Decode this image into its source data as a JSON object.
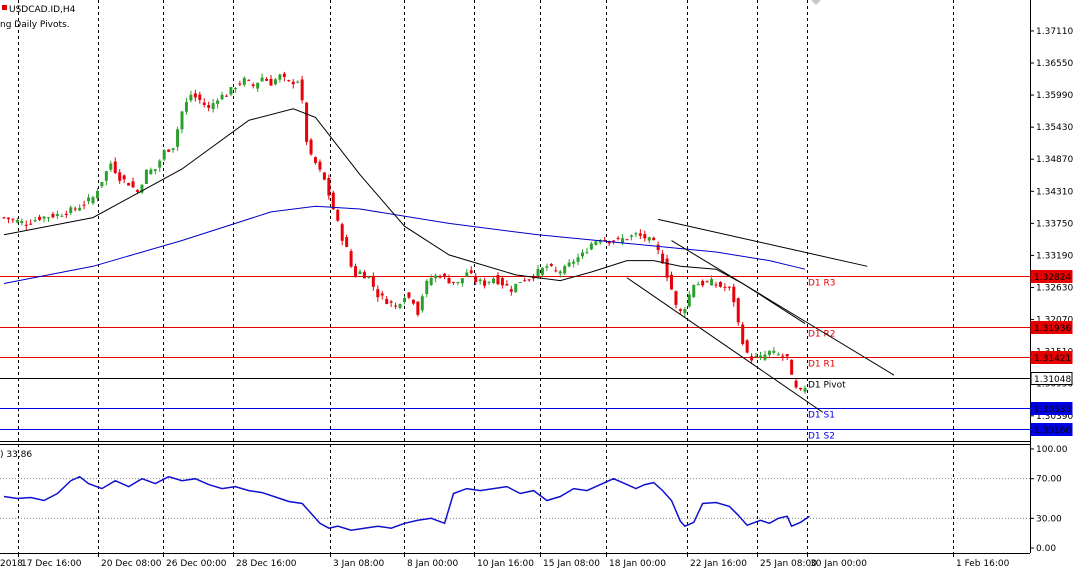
{
  "header": {
    "symbol_title": "USDCAD.ID,H4",
    "indicator_label": "ng Daily Pivots."
  },
  "rsi_label": ") 33.86",
  "colors": {
    "bull": "#2ca02c",
    "bear": "#e8000a",
    "ma_fast": "#000000",
    "ma_slow": "#0000c8",
    "resistance": "#e60000",
    "support": "#0000e6",
    "pivot": "#000000",
    "rsi": "#1010d0",
    "grid": "#000000"
  },
  "chart_data": [
    {
      "type": "candlestick",
      "title": "USDCAD.ID,H4",
      "ylim": [
        1.2995,
        1.3765
      ],
      "y_ticks": [
        "1.37110",
        "1.36550",
        "1.35990",
        "1.35430",
        "1.34870",
        "1.34310",
        "1.33750",
        "1.33190",
        "1.32630",
        "1.32070",
        "1.31510",
        "1.30950",
        "1.30390"
      ],
      "x_tick_labels": [
        "2018",
        "17 Dec 16:00",
        "20 Dec 08:00",
        "26 Dec 00:00",
        "28 Dec 16:00",
        "3 Jan 08:00",
        "8 Jan 00:00",
        "10 Jan 16:00",
        "15 Jan 08:00",
        "18 Jan 00:00",
        "22 Jan 16:00",
        "25 Jan 08:00",
        "30 Jan 00:00",
        "1 Feb 16:00"
      ],
      "close_path": [
        [
          0,
          1.3385
        ],
        [
          5,
          1.3375
        ],
        [
          8,
          1.3385
        ],
        [
          12,
          1.339
        ],
        [
          16,
          1.34
        ],
        [
          20,
          1.342
        ],
        [
          24,
          1.348
        ],
        [
          26,
          1.3455
        ],
        [
          28,
          1.3445
        ],
        [
          30,
          1.343
        ],
        [
          32,
          1.3465
        ],
        [
          34,
          1.347
        ],
        [
          36,
          1.35
        ],
        [
          38,
          1.351
        ],
        [
          40,
          1.357
        ],
        [
          42,
          1.36
        ],
        [
          44,
          1.359
        ],
        [
          46,
          1.3575
        ],
        [
          48,
          1.3595
        ],
        [
          50,
          1.36
        ],
        [
          52,
          1.3615
        ],
        [
          54,
          1.3625
        ],
        [
          56,
          1.3615
        ],
        [
          58,
          1.363
        ],
        [
          60,
          1.362
        ],
        [
          62,
          1.3632
        ],
        [
          64,
          1.362
        ],
        [
          66,
          1.3625
        ],
        [
          67,
          1.3585
        ],
        [
          68,
          1.352
        ],
        [
          69,
          1.349
        ],
        [
          70,
          1.348
        ],
        [
          72,
          1.345
        ],
        [
          74,
          1.34
        ],
        [
          76,
          1.335
        ],
        [
          77,
          1.333
        ],
        [
          78,
          1.33
        ],
        [
          79,
          1.3285
        ],
        [
          80,
          1.329
        ],
        [
          82,
          1.328
        ],
        [
          84,
          1.325
        ],
        [
          86,
          1.324
        ],
        [
          88,
          1.323
        ],
        [
          90,
          1.325
        ],
        [
          92,
          1.324
        ],
        [
          93,
          1.322
        ],
        [
          94,
          1.325
        ],
        [
          95,
          1.327
        ],
        [
          96,
          1.328
        ],
        [
          98,
          1.3285
        ],
        [
          100,
          1.3275
        ],
        [
          102,
          1.327
        ],
        [
          104,
          1.329
        ],
        [
          106,
          1.3275
        ],
        [
          108,
          1.327
        ],
        [
          110,
          1.328
        ],
        [
          112,
          1.327
        ],
        [
          114,
          1.326
        ],
        [
          116,
          1.3275
        ],
        [
          118,
          1.328
        ],
        [
          120,
          1.329
        ],
        [
          122,
          1.33
        ],
        [
          124,
          1.329
        ],
        [
          126,
          1.3295
        ],
        [
          128,
          1.331
        ],
        [
          130,
          1.332
        ],
        [
          132,
          1.334
        ],
        [
          134,
          1.335
        ],
        [
          136,
          1.3345
        ],
        [
          138,
          1.3345
        ],
        [
          140,
          1.335
        ],
        [
          142,
          1.3355
        ],
        [
          144,
          1.335
        ],
        [
          146,
          1.334
        ],
        [
          148,
          1.331
        ],
        [
          150,
          1.326
        ],
        [
          151,
          1.323
        ],
        [
          152,
          1.322
        ],
        [
          153,
          1.323
        ],
        [
          155,
          1.327
        ],
        [
          157,
          1.327
        ],
        [
          159,
          1.3272
        ],
        [
          161,
          1.3265
        ],
        [
          163,
          1.326
        ],
        [
          164,
          1.324
        ],
        [
          165,
          1.32
        ],
        [
          166,
          1.317
        ],
        [
          167,
          1.3145
        ],
        [
          168,
          1.314
        ],
        [
          170,
          1.314
        ],
        [
          172,
          1.315
        ],
        [
          174,
          1.3145
        ],
        [
          176,
          1.314
        ],
        [
          177,
          1.3105
        ],
        [
          178,
          1.3085
        ],
        [
          179,
          1.308
        ],
        [
          180,
          1.309
        ]
      ],
      "pivot_levels": [
        {
          "name": "D1 R3",
          "value": 1.32824
        },
        {
          "name": "D1 R2",
          "value": 1.31936
        },
        {
          "name": "D1 R1",
          "value": 1.31421
        },
        {
          "name": "D1 Pivot",
          "value": 1.31048
        },
        {
          "name": "D1 S1",
          "value": 1.30533
        },
        {
          "name": "D1 S2",
          "value": 1.3016
        }
      ],
      "ma_fast": [
        [
          0,
          1.3355
        ],
        [
          20,
          1.3385
        ],
        [
          40,
          1.347
        ],
        [
          55,
          1.3555
        ],
        [
          65,
          1.3575
        ],
        [
          70,
          1.356
        ],
        [
          80,
          1.346
        ],
        [
          90,
          1.337
        ],
        [
          100,
          1.332
        ],
        [
          115,
          1.3285
        ],
        [
          125,
          1.3275
        ],
        [
          132,
          1.329
        ],
        [
          140,
          1.331
        ],
        [
          146,
          1.331
        ],
        [
          152,
          1.33
        ],
        [
          160,
          1.3295
        ],
        [
          166,
          1.327
        ],
        [
          172,
          1.324
        ],
        [
          180,
          1.32
        ]
      ],
      "ma_slow": [
        [
          0,
          1.327
        ],
        [
          20,
          1.33
        ],
        [
          40,
          1.3345
        ],
        [
          60,
          1.3395
        ],
        [
          70,
          1.3405
        ],
        [
          80,
          1.34
        ],
        [
          100,
          1.3375
        ],
        [
          120,
          1.3355
        ],
        [
          140,
          1.334
        ],
        [
          160,
          1.3325
        ],
        [
          172,
          1.331
        ],
        [
          180,
          1.3295
        ]
      ],
      "channel_lines": [
        [
          [
            147,
            1.3382
          ],
          [
            194,
            1.33
          ]
        ],
        [
          [
            140,
            1.328
          ],
          [
            184,
            1.3045
          ]
        ],
        [
          [
            150,
            1.3345
          ],
          [
            200,
            1.311
          ]
        ]
      ]
    },
    {
      "type": "line",
      "title": "RSI",
      "current_value": 33.86,
      "ylim": [
        -5,
        105
      ],
      "y_ticks": [
        "100.00",
        "70.00",
        "30.00",
        "0.00"
      ],
      "levels": [
        70,
        30
      ],
      "values": [
        [
          0,
          52
        ],
        [
          3,
          50
        ],
        [
          6,
          51
        ],
        [
          9,
          48
        ],
        [
          12,
          55
        ],
        [
          15,
          68
        ],
        [
          17,
          72
        ],
        [
          19,
          65
        ],
        [
          22,
          60
        ],
        [
          25,
          68
        ],
        [
          28,
          62
        ],
        [
          31,
          70
        ],
        [
          34,
          65
        ],
        [
          37,
          72
        ],
        [
          40,
          68
        ],
        [
          43,
          70
        ],
        [
          46,
          64
        ],
        [
          49,
          60
        ],
        [
          52,
          62
        ],
        [
          55,
          58
        ],
        [
          58,
          56
        ],
        [
          62,
          50
        ],
        [
          64,
          47
        ],
        [
          67,
          45
        ],
        [
          69,
          35
        ],
        [
          71,
          25
        ],
        [
          73,
          20
        ],
        [
          75,
          22
        ],
        [
          78,
          18
        ],
        [
          81,
          20
        ],
        [
          84,
          22
        ],
        [
          87,
          20
        ],
        [
          90,
          25
        ],
        [
          93,
          28
        ],
        [
          96,
          30
        ],
        [
          99,
          25
        ],
        [
          101,
          55
        ],
        [
          104,
          60
        ],
        [
          107,
          58
        ],
        [
          110,
          60
        ],
        [
          113,
          62
        ],
        [
          116,
          55
        ],
        [
          119,
          58
        ],
        [
          122,
          48
        ],
        [
          125,
          52
        ],
        [
          128,
          60
        ],
        [
          131,
          58
        ],
        [
          134,
          64
        ],
        [
          137,
          70
        ],
        [
          140,
          64
        ],
        [
          142,
          60
        ],
        [
          144,
          64
        ],
        [
          146,
          66
        ],
        [
          148,
          58
        ],
        [
          150,
          48
        ],
        [
          152,
          27
        ],
        [
          153,
          22
        ],
        [
          155,
          26
        ],
        [
          157,
          45
        ],
        [
          160,
          46
        ],
        [
          163,
          42
        ],
        [
          165,
          33
        ],
        [
          167,
          23
        ],
        [
          170,
          28
        ],
        [
          172,
          25
        ],
        [
          174,
          30
        ],
        [
          176,
          32
        ],
        [
          177,
          22
        ],
        [
          179,
          26
        ],
        [
          181,
          32
        ]
      ]
    }
  ]
}
